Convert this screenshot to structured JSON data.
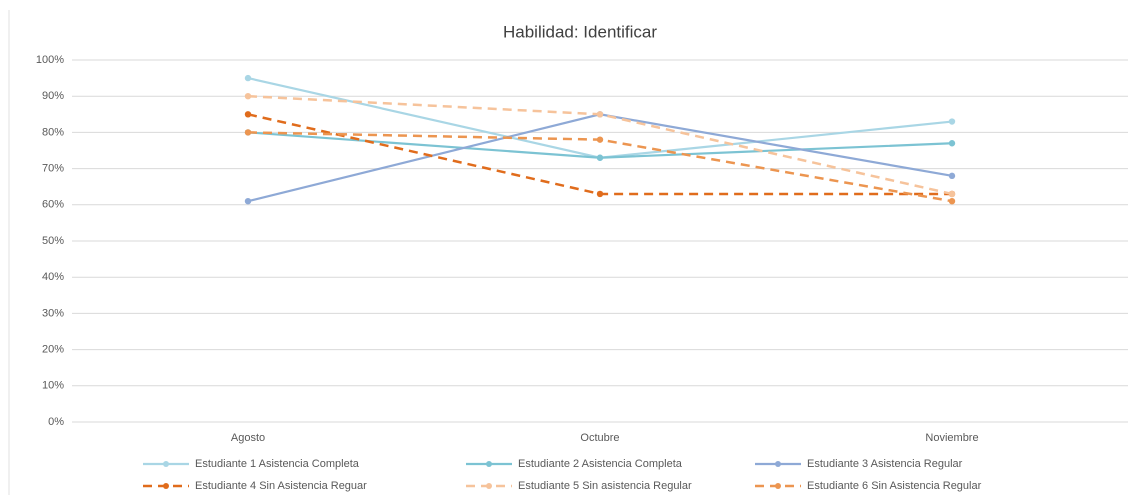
{
  "chart_data": {
    "type": "line",
    "title": "Habilidad: Identificar",
    "categories": [
      "Agosto",
      "Octubre",
      "Noviembre"
    ],
    "series": [
      {
        "name": "Estudiante 1 Asistencia Completa",
        "color": "#a9d6e5",
        "dashed": false,
        "values": [
          95,
          73,
          83
        ]
      },
      {
        "name": "Estudiante 2 Asistencia Completa",
        "color": "#7cc3d3",
        "dashed": false,
        "values": [
          80,
          73,
          77
        ]
      },
      {
        "name": "Estudiante 3 Asistencia Regular",
        "color": "#8ea9d6",
        "dashed": false,
        "values": [
          61,
          85,
          68
        ]
      },
      {
        "name": "Estudiante 4 Sin Asistencia Reguar",
        "color": "#e06c1c",
        "dashed": true,
        "values": [
          85,
          63,
          63
        ]
      },
      {
        "name": "Estudiante 5 Sin asistencia Regular",
        "color": "#f6c39b",
        "dashed": true,
        "values": [
          90,
          85,
          63
        ]
      },
      {
        "name": "Estudiante 6 Sin Asistencia Regular",
        "color": "#ec9550",
        "dashed": true,
        "values": [
          80,
          78,
          61
        ]
      }
    ],
    "ylim": [
      0,
      100
    ],
    "yticks": [
      {
        "value": 0,
        "label": "0%"
      },
      {
        "value": 10,
        "label": "10%"
      },
      {
        "value": 20,
        "label": "20%"
      },
      {
        "value": 30,
        "label": "30%"
      },
      {
        "value": 40,
        "label": "40%"
      },
      {
        "value": 50,
        "label": "50%"
      },
      {
        "value": 60,
        "label": "60%"
      },
      {
        "value": 70,
        "label": "70%"
      },
      {
        "value": 80,
        "label": "80%"
      },
      {
        "value": 90,
        "label": "90%"
      },
      {
        "value": 100,
        "label": "100%"
      }
    ],
    "grid": true
  }
}
